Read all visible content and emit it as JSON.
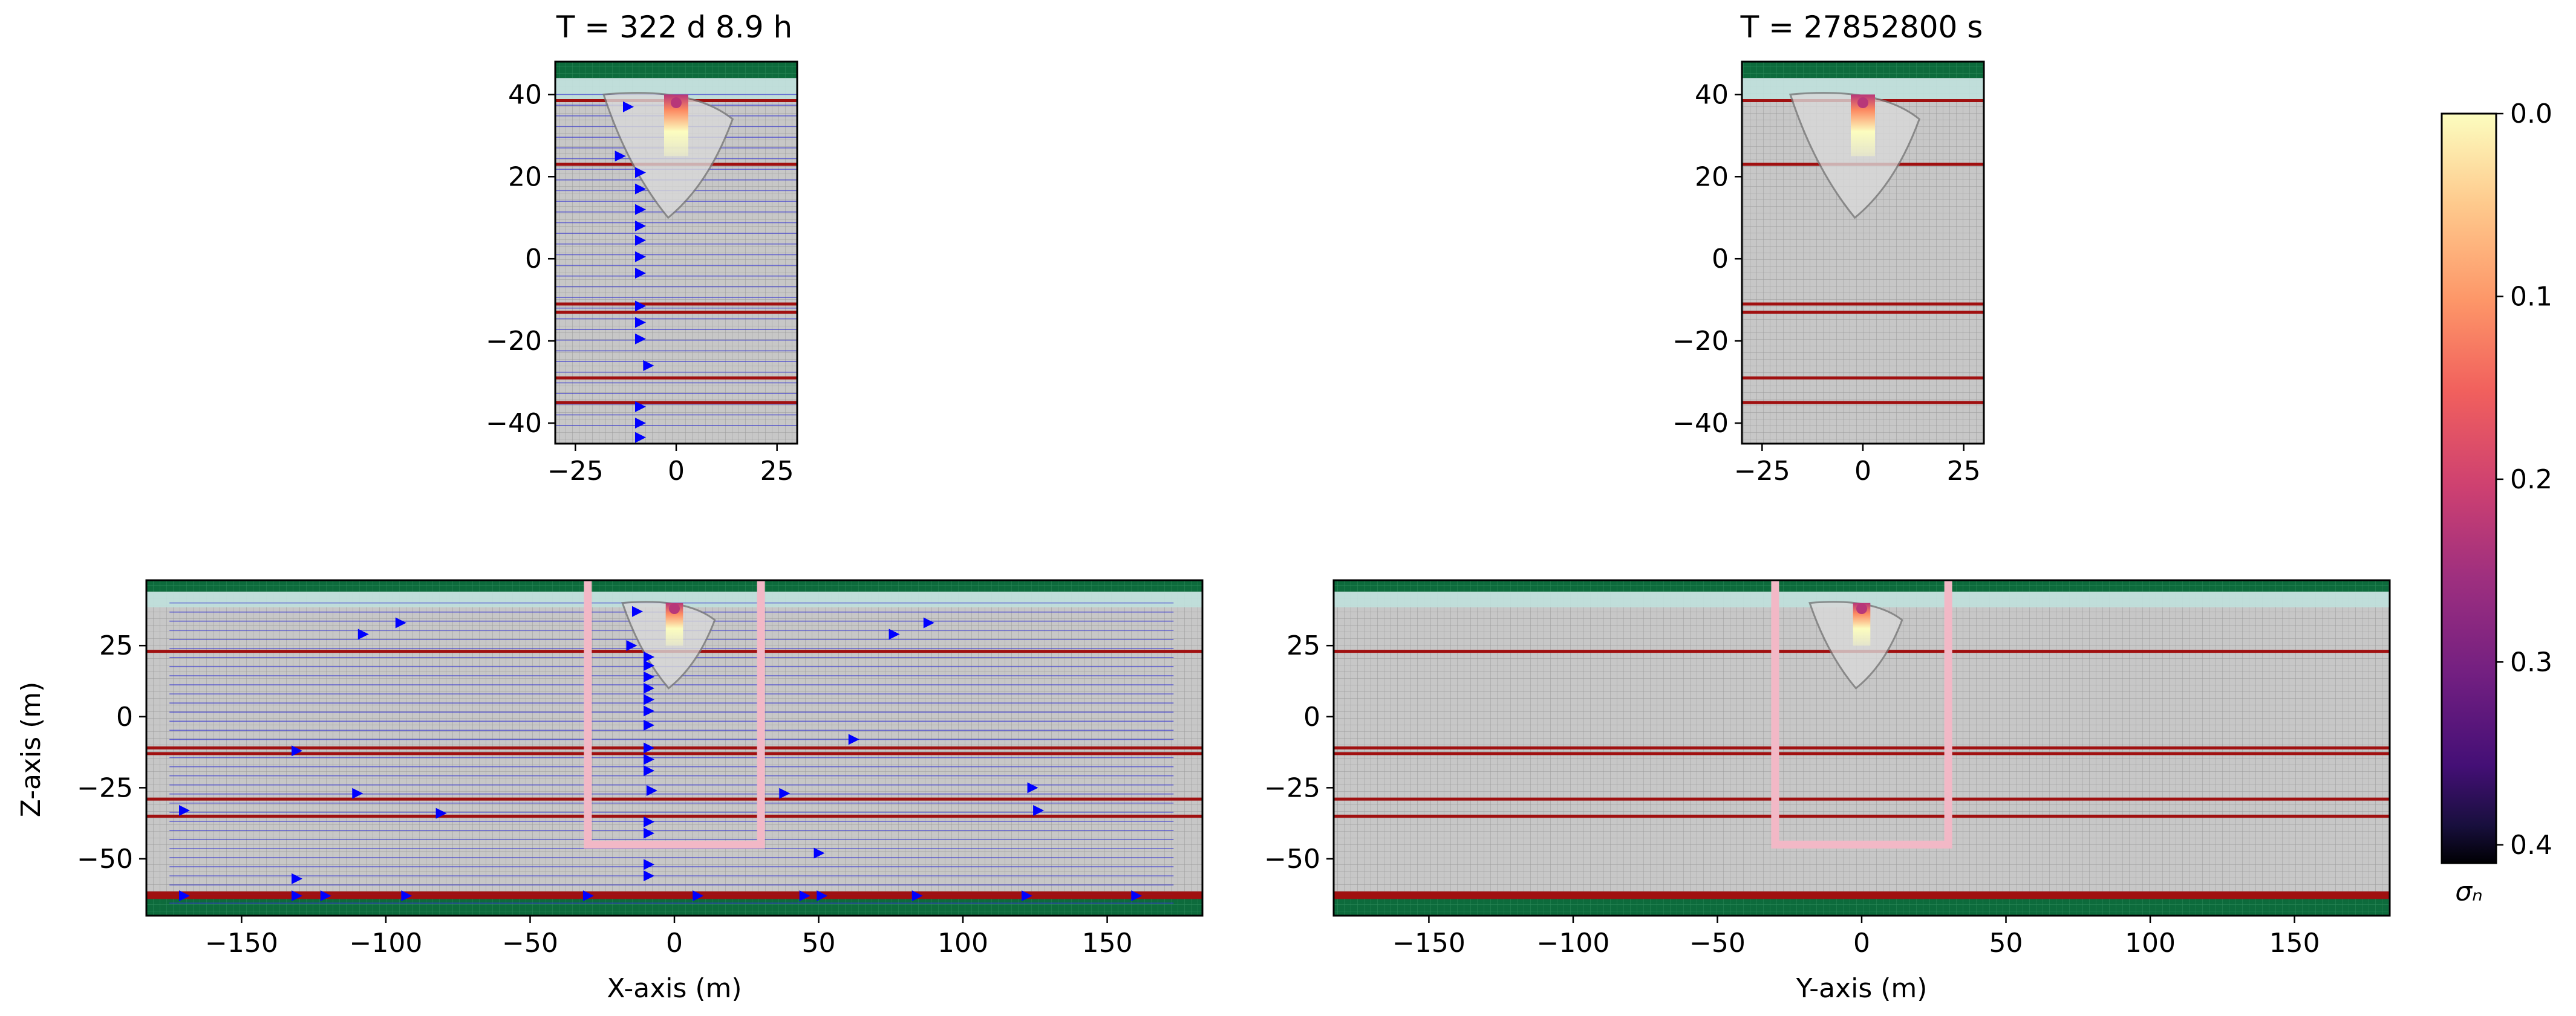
{
  "chart_data": [
    {
      "type": "heatmap",
      "title": "T = 322 d  8.9 h",
      "xlabel": "",
      "ylabel": "",
      "xlim": [
        -30,
        30
      ],
      "ylim": [
        -45,
        48
      ],
      "xticks": [
        "−25",
        "0",
        "25"
      ],
      "xtick_values": [
        -25,
        0,
        25
      ],
      "yticks": [
        "−40",
        "−20",
        "0",
        "20",
        "40"
      ],
      "ytick_values": [
        -40,
        -20,
        0,
        20,
        40
      ],
      "layer_boundaries_z": [
        38.5,
        23,
        -11,
        -13,
        -29,
        -35
      ],
      "flow_arrows": [
        [
          -12,
          37
        ],
        [
          -14,
          25
        ],
        [
          -9,
          21
        ],
        [
          -9,
          17
        ],
        [
          -9,
          12
        ],
        [
          -9,
          8
        ],
        [
          -9,
          4.5
        ],
        [
          -9,
          0.5
        ],
        [
          -9,
          -3.5
        ],
        [
          -9,
          -11.5
        ],
        [
          -9,
          -15.5
        ],
        [
          -9,
          -19.5
        ],
        [
          -7,
          -26
        ],
        [
          -9,
          -36
        ],
        [
          -9,
          -40
        ],
        [
          -9,
          -43.5
        ]
      ],
      "grid": true
    },
    {
      "type": "heatmap",
      "title": "T = 27852800 s",
      "xlabel": "",
      "ylabel": "",
      "xlim": [
        -30,
        30
      ],
      "ylim": [
        -45,
        48
      ],
      "xticks": [
        "−25",
        "0",
        "25"
      ],
      "xtick_values": [
        -25,
        0,
        25
      ],
      "yticks": [
        "−40",
        "−20",
        "0",
        "20",
        "40"
      ],
      "ytick_values": [
        -40,
        -20,
        0,
        20,
        40
      ],
      "layer_boundaries_z": [
        38.5,
        23,
        -11,
        -13,
        -29,
        -35
      ],
      "flow_arrows": [],
      "grid": true
    },
    {
      "type": "heatmap",
      "title": "",
      "xlabel": "X-axis (m)",
      "ylabel": "Z-axis (m)",
      "xlim": [
        -183,
        183
      ],
      "ylim": [
        -70,
        48
      ],
      "xticks": [
        "−150",
        "−100",
        "−50",
        "0",
        "50",
        "100",
        "150"
      ],
      "xtick_values": [
        -150,
        -100,
        -50,
        0,
        50,
        100,
        150
      ],
      "yticks": [
        "25",
        "0",
        "−25",
        "−50"
      ],
      "ytick_values": [
        25,
        0,
        -25,
        -50
      ],
      "layer_boundaries_z": [
        23,
        -11,
        -13,
        -29,
        -35,
        -62
      ],
      "subdomain_box": {
        "x": [
          -30,
          30
        ],
        "z": [
          -45,
          48
        ]
      },
      "flow_arrows": [
        [
          -95,
          33
        ],
        [
          -108,
          29
        ],
        [
          -13,
          37
        ],
        [
          -15,
          25
        ],
        [
          76,
          29
        ],
        [
          88,
          33
        ],
        [
          -9,
          21
        ],
        [
          -9,
          18
        ],
        [
          -9,
          14
        ],
        [
          -9,
          10
        ],
        [
          -9,
          6
        ],
        [
          -9,
          2
        ],
        [
          -9,
          -3
        ],
        [
          -9,
          -11
        ],
        [
          -9,
          -15
        ],
        [
          -9,
          -19
        ],
        [
          62,
          -8
        ],
        [
          -131,
          -12
        ],
        [
          -110,
          -27
        ],
        [
          38,
          -27
        ],
        [
          124,
          -25
        ],
        [
          -8,
          -26
        ],
        [
          -170,
          -33
        ],
        [
          -81,
          -34
        ],
        [
          126,
          -33
        ],
        [
          -9,
          -37
        ],
        [
          -9,
          -41
        ],
        [
          50,
          -48
        ],
        [
          -9,
          -52
        ],
        [
          -9,
          -56
        ],
        [
          -131,
          -57
        ],
        [
          -170,
          -63
        ],
        [
          -131,
          -63
        ],
        [
          -121,
          -63
        ],
        [
          -93,
          -63
        ],
        [
          -30,
          -63
        ],
        [
          8,
          -63
        ],
        [
          45,
          -63
        ],
        [
          51,
          -63
        ],
        [
          84,
          -63
        ],
        [
          122,
          -63
        ],
        [
          160,
          -63
        ]
      ],
      "grid": true
    },
    {
      "type": "heatmap",
      "title": "",
      "xlabel": "Y-axis (m)",
      "ylabel": "",
      "xlim": [
        -183,
        183
      ],
      "ylim": [
        -70,
        48
      ],
      "xticks": [
        "−150",
        "−100",
        "−50",
        "0",
        "50",
        "100",
        "150"
      ],
      "xtick_values": [
        -150,
        -100,
        -50,
        0,
        50,
        100,
        150
      ],
      "yticks": [
        "25",
        "0",
        "−25",
        "−50"
      ],
      "ytick_values": [
        25,
        0,
        -25,
        -50
      ],
      "layer_boundaries_z": [
        23,
        -11,
        -13,
        -29,
        -35,
        -62
      ],
      "subdomain_box": {
        "x": [
          -30,
          30
        ],
        "z": [
          -45,
          48
        ]
      },
      "flow_arrows": [],
      "grid": true
    }
  ],
  "colorbar": {
    "label": "σₙ",
    "colormap": "magma_r",
    "range": [
      0.0,
      0.41
    ],
    "ticks": [
      "0.0",
      "0.1",
      "0.2",
      "0.3",
      "0.4"
    ],
    "tick_values": [
      0.0,
      0.1,
      0.2,
      0.3,
      0.4
    ]
  },
  "colors": {
    "rock": "#c7c7c7",
    "mesh": "#9a9a9a",
    "surface": "#0d6b3c",
    "top_layer": "#bfe0dc",
    "layer_boundary": "#a01010",
    "flow_line": "#3838d0",
    "flow_arrow": "#0000ff",
    "subdomain_box": "#f2b8c6",
    "axes_frame": "#000000"
  }
}
